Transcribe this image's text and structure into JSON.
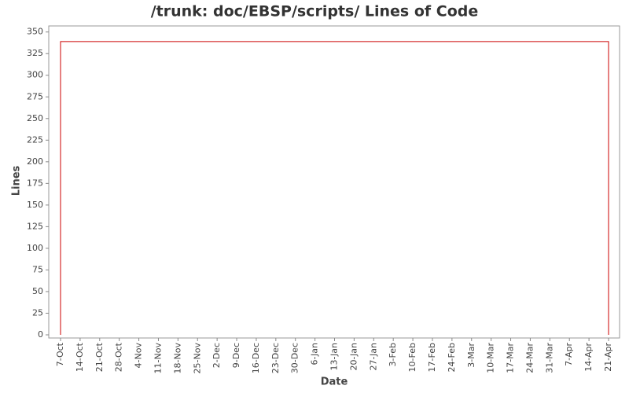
{
  "chart_data": {
    "type": "line",
    "title": "/trunk: doc/EBSP/scripts/ Lines of Code",
    "x_label": "Date",
    "y_label": "Lines",
    "categories": [
      "7-Oct",
      "14-Oct",
      "21-Oct",
      "28-Oct",
      "4-Nov",
      "11-Nov",
      "18-Nov",
      "25-Nov",
      "2-Dec",
      "9-Dec",
      "16-Dec",
      "23-Dec",
      "30-Dec",
      "6-Jan",
      "13-Jan",
      "20-Jan",
      "27-Jan",
      "3-Feb",
      "10-Feb",
      "17-Feb",
      "24-Feb",
      "3-Mar",
      "10-Mar",
      "17-Mar",
      "24-Mar",
      "31-Mar",
      "7-Apr",
      "14-Apr",
      "21-Apr"
    ],
    "series": [
      {
        "x": [
          "7-Oct",
          "7-Oct",
          "21-Apr",
          "21-Apr"
        ],
        "values": [
          0,
          339,
          339,
          0
        ],
        "color": "#cc0000"
      }
    ],
    "ylim": [
      0,
      357
    ],
    "yticks": [
      0,
      25,
      50,
      75,
      100,
      125,
      150,
      175,
      200,
      225,
      250,
      275,
      300,
      325,
      350
    ]
  }
}
